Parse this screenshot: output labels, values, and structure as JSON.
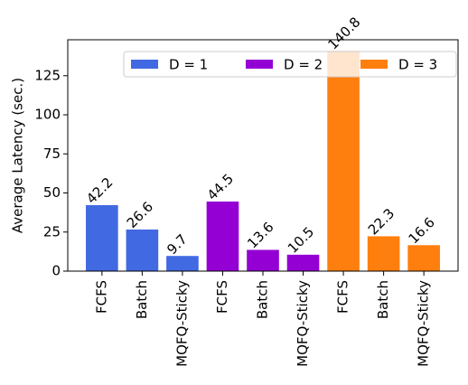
{
  "chart_data": {
    "type": "bar",
    "ylabel": "Average Latency (sec.)",
    "categories": [
      "FCFS",
      "Batch",
      "MQFQ-Sticky",
      "FCFS",
      "Batch",
      "MQFQ-Sticky",
      "FCFS",
      "Batch",
      "MQFQ-Sticky"
    ],
    "series": [
      {
        "name": "D = 1",
        "color": "#4169e1",
        "values": [
          42.2,
          26.6,
          9.7,
          null,
          null,
          null,
          null,
          null,
          null
        ]
      },
      {
        "name": "D = 2",
        "color": "#9400d3",
        "values": [
          null,
          null,
          null,
          44.5,
          13.6,
          10.5,
          null,
          null,
          null
        ]
      },
      {
        "name": "D = 3",
        "color": "#ff7f0e",
        "values": [
          null,
          null,
          null,
          null,
          null,
          null,
          140.8,
          22.3,
          16.6
        ]
      }
    ],
    "ylim": [
      0,
      148
    ],
    "yticks": [
      0,
      25,
      50,
      75,
      100,
      125
    ],
    "legend": "upper right"
  }
}
